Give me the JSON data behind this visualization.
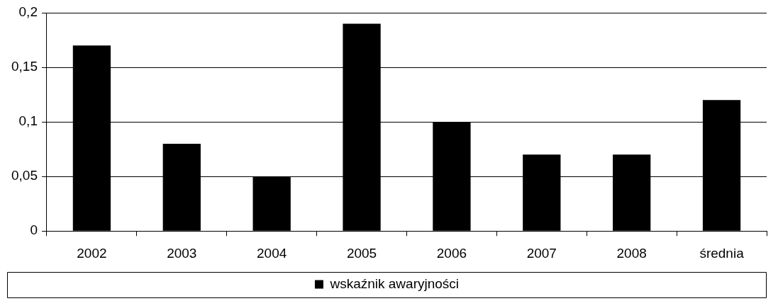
{
  "chart_data": {
    "type": "bar",
    "categories": [
      "2002",
      "2003",
      "2004",
      "2005",
      "2006",
      "2007",
      "2008",
      "średnia"
    ],
    "series": [
      {
        "name": "wskaźnik awaryjności",
        "color": "#000000",
        "values": [
          0.17,
          0.08,
          0.05,
          0.19,
          0.1,
          0.07,
          0.07,
          0.12
        ]
      }
    ],
    "ylim": [
      0,
      0.2
    ],
    "yticks": [
      {
        "value": 0,
        "label": "0"
      },
      {
        "value": 0.05,
        "label": "0,05"
      },
      {
        "value": 0.1,
        "label": "0,1"
      },
      {
        "value": 0.15,
        "label": "0,15"
      },
      {
        "value": 0.2,
        "label": "0,2"
      }
    ],
    "grid": "y",
    "legend": "bottom"
  }
}
